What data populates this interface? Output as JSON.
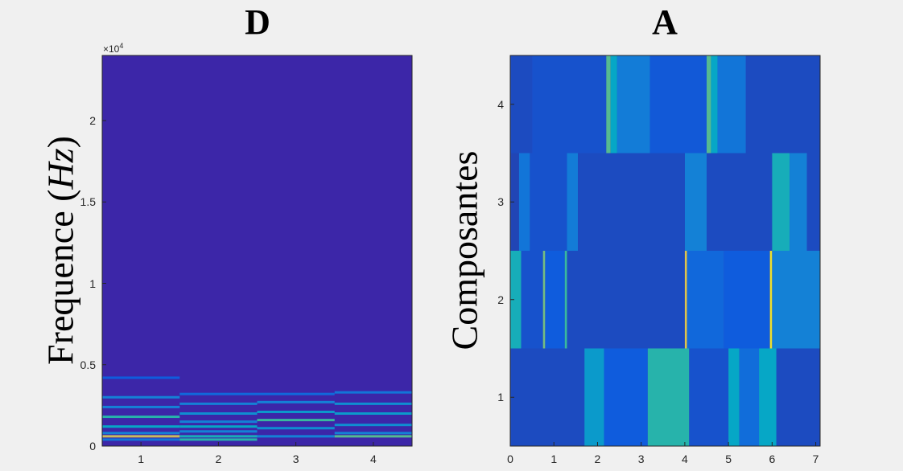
{
  "chart_data": [
    {
      "type": "heatmap",
      "title": "D",
      "xlabel": "",
      "ylabel": "Frequence",
      "ylabel_var": "Hz",
      "y_exponent": "×10",
      "y_exponent_power": "4",
      "xlim": [
        0.5,
        4.5
      ],
      "ylim": [
        0,
        24000
      ],
      "x_ticks": [
        "1",
        "2",
        "3",
        "4"
      ],
      "y_ticks": [
        {
          "v": 0,
          "label": "0"
        },
        {
          "v": 5000,
          "label": "0.5"
        },
        {
          "v": 10000,
          "label": "1"
        },
        {
          "v": 15000,
          "label": "1.5"
        },
        {
          "v": 20000,
          "label": "2"
        }
      ],
      "background_color": "#3c26a8",
      "columns": [
        {
          "x": 1,
          "lines": [
            {
              "f": 400,
              "i": 0.25
            },
            {
              "f": 600,
              "i": 0.85
            },
            {
              "f": 800,
              "i": 0.3
            },
            {
              "f": 1200,
              "i": 0.45
            },
            {
              "f": 1800,
              "i": 0.55
            },
            {
              "f": 2400,
              "i": 0.3
            },
            {
              "f": 3000,
              "i": 0.3
            },
            {
              "f": 4200,
              "i": 0.15
            }
          ]
        },
        {
          "x": 2,
          "lines": [
            {
              "f": 400,
              "i": 0.55
            },
            {
              "f": 600,
              "i": 0.5
            },
            {
              "f": 900,
              "i": 0.3
            },
            {
              "f": 1200,
              "i": 0.45
            },
            {
              "f": 1500,
              "i": 0.3
            },
            {
              "f": 2000,
              "i": 0.35
            },
            {
              "f": 2600,
              "i": 0.3
            },
            {
              "f": 3200,
              "i": 0.2
            }
          ]
        },
        {
          "x": 3,
          "lines": [
            {
              "f": 600,
              "i": 0.3
            },
            {
              "f": 1100,
              "i": 0.35
            },
            {
              "f": 1600,
              "i": 0.6
            },
            {
              "f": 2100,
              "i": 0.4
            },
            {
              "f": 2700,
              "i": 0.3
            },
            {
              "f": 3200,
              "i": 0.2
            }
          ]
        },
        {
          "x": 4,
          "lines": [
            {
              "f": 600,
              "i": 0.65
            },
            {
              "f": 800,
              "i": 0.3
            },
            {
              "f": 1300,
              "i": 0.35
            },
            {
              "f": 2000,
              "i": 0.4
            },
            {
              "f": 2600,
              "i": 0.35
            },
            {
              "f": 3300,
              "i": 0.25
            }
          ]
        }
      ]
    },
    {
      "type": "heatmap",
      "title": "A",
      "xlabel": "",
      "ylabel": "Composantes",
      "xlim": [
        0,
        7.1
      ],
      "ylim": [
        0.5,
        4.5
      ],
      "x_ticks": [
        "0",
        "1",
        "2",
        "3",
        "4",
        "5",
        "6",
        "7"
      ],
      "y_ticks": [
        "1",
        "2",
        "3",
        "4"
      ],
      "background_color": "#3c26a8",
      "rows": [
        {
          "y": 4,
          "segments": [
            {
              "x0": 0,
              "x1": 0.5,
              "i": 0.1
            },
            {
              "x0": 0.5,
              "x1": 2.2,
              "i": 0.12
            },
            {
              "x0": 2.2,
              "x1": 2.3,
              "i": 0.65
            },
            {
              "x0": 2.3,
              "x1": 2.45,
              "i": 0.45
            },
            {
              "x0": 2.45,
              "x1": 3.2,
              "i": 0.28
            },
            {
              "x0": 3.2,
              "x1": 4.5,
              "i": 0.14
            },
            {
              "x0": 4.5,
              "x1": 4.6,
              "i": 0.65
            },
            {
              "x0": 4.6,
              "x1": 4.75,
              "i": 0.45
            },
            {
              "x0": 4.75,
              "x1": 5.4,
              "i": 0.25
            },
            {
              "x0": 5.4,
              "x1": 7.1,
              "i": 0.1
            }
          ]
        },
        {
          "y": 3,
          "segments": [
            {
              "x0": 0,
              "x1": 0.2,
              "i": 0.08
            },
            {
              "x0": 0.2,
              "x1": 0.45,
              "i": 0.25
            },
            {
              "x0": 0.45,
              "x1": 1.3,
              "i": 0.12
            },
            {
              "x0": 1.3,
              "x1": 1.55,
              "i": 0.28
            },
            {
              "x0": 1.55,
              "x1": 4.0,
              "i": 0.1
            },
            {
              "x0": 4.0,
              "x1": 4.5,
              "i": 0.3
            },
            {
              "x0": 4.5,
              "x1": 6.0,
              "i": 0.1
            },
            {
              "x0": 6.0,
              "x1": 6.4,
              "i": 0.5
            },
            {
              "x0": 6.4,
              "x1": 6.8,
              "i": 0.3
            },
            {
              "x0": 6.8,
              "x1": 7.1,
              "i": 0.1
            }
          ]
        },
        {
          "y": 2,
          "segments": [
            {
              "x0": 0,
              "x1": 0.25,
              "i": 0.5
            },
            {
              "x0": 0.25,
              "x1": 0.75,
              "i": 0.12
            },
            {
              "x0": 0.75,
              "x1": 0.8,
              "i": 0.7
            },
            {
              "x0": 0.8,
              "x1": 1.25,
              "i": 0.15
            },
            {
              "x0": 1.25,
              "x1": 1.3,
              "i": 0.6
            },
            {
              "x0": 1.3,
              "x1": 4.0,
              "i": 0.1
            },
            {
              "x0": 4.0,
              "x1": 4.05,
              "i": 0.9
            },
            {
              "x0": 4.05,
              "x1": 4.9,
              "i": 0.2
            },
            {
              "x0": 4.9,
              "x1": 5.95,
              "i": 0.15
            },
            {
              "x0": 5.95,
              "x1": 6.0,
              "i": 0.95
            },
            {
              "x0": 6.0,
              "x1": 7.1,
              "i": 0.3
            }
          ]
        },
        {
          "y": 1,
          "segments": [
            {
              "x0": 0,
              "x1": 1.7,
              "i": 0.1
            },
            {
              "x0": 1.7,
              "x1": 2.15,
              "i": 0.4
            },
            {
              "x0": 2.15,
              "x1": 3.15,
              "i": 0.15
            },
            {
              "x0": 3.15,
              "x1": 4.1,
              "i": 0.55
            },
            {
              "x0": 4.1,
              "x1": 5.0,
              "i": 0.12
            },
            {
              "x0": 5.0,
              "x1": 5.25,
              "i": 0.45
            },
            {
              "x0": 5.25,
              "x1": 5.7,
              "i": 0.22
            },
            {
              "x0": 5.7,
              "x1": 6.1,
              "i": 0.45
            },
            {
              "x0": 6.1,
              "x1": 7.1,
              "i": 0.1
            }
          ]
        }
      ]
    }
  ]
}
